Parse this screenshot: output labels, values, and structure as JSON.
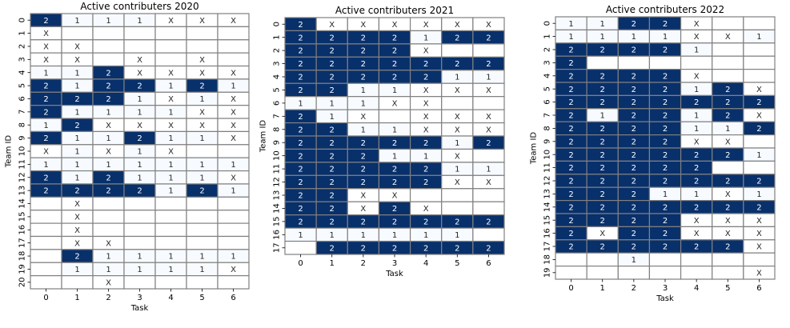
{
  "chart_data": [
    {
      "type": "heatmap",
      "title": "Active contributers 2020",
      "xlabel": "Task",
      "ylabel": "Team ID",
      "x_ticks": [
        "0",
        "1",
        "2",
        "3",
        "4",
        "5",
        "6"
      ],
      "y_ticks": [
        "0",
        "1",
        "2",
        "3",
        "4",
        "5",
        "6",
        "7",
        "8",
        "9",
        "10",
        "11",
        "12",
        "13",
        "14",
        "15",
        "16",
        "17",
        "18",
        "19",
        "20"
      ],
      "cells": [
        [
          "2",
          "1",
          "1",
          "1",
          "X",
          "X",
          "X"
        ],
        [
          "X",
          "",
          "",
          "",
          "",
          "",
          ""
        ],
        [
          "X",
          "X",
          "",
          "",
          "",
          "",
          ""
        ],
        [
          "X",
          "X",
          "",
          "X",
          "",
          "X",
          ""
        ],
        [
          "1",
          "1",
          "2",
          "X",
          "X",
          "X",
          "X"
        ],
        [
          "2",
          "1",
          "2",
          "2",
          "1",
          "2",
          "1"
        ],
        [
          "2",
          "2",
          "2",
          "1",
          "X",
          "1",
          "X"
        ],
        [
          "2",
          "1",
          "1",
          "1",
          "1",
          "X",
          "X"
        ],
        [
          "1",
          "2",
          "X",
          "X",
          "X",
          "X",
          "X"
        ],
        [
          "2",
          "1",
          "1",
          "2",
          "1",
          "1",
          "X"
        ],
        [
          "X",
          "1",
          "X",
          "1",
          "X",
          "",
          ""
        ],
        [
          "1",
          "1",
          "1",
          "1",
          "1",
          "1",
          "1"
        ],
        [
          "2",
          "1",
          "2",
          "1",
          "1",
          "1",
          "X"
        ],
        [
          "2",
          "2",
          "2",
          "2",
          "1",
          "2",
          "1"
        ],
        [
          "",
          "X",
          "",
          "",
          "",
          "",
          ""
        ],
        [
          "",
          "X",
          "",
          "",
          "",
          "",
          ""
        ],
        [
          "",
          "X",
          "",
          "",
          "",
          "",
          ""
        ],
        [
          "",
          "X",
          "X",
          "",
          "",
          "",
          ""
        ],
        [
          "",
          "2",
          "1",
          "1",
          "1",
          "1",
          "1"
        ],
        [
          "",
          "1",
          "1",
          "1",
          "1",
          "1",
          "X"
        ],
        [
          "",
          "",
          "X",
          "",
          "",
          "",
          ""
        ]
      ]
    },
    {
      "type": "heatmap",
      "title": "Active contributers 2021",
      "xlabel": "Task",
      "ylabel": "Team ID",
      "x_ticks": [
        "0",
        "1",
        "2",
        "3",
        "4",
        "5",
        "6"
      ],
      "y_ticks": [
        "0",
        "1",
        "2",
        "3",
        "4",
        "5",
        "6",
        "7",
        "8",
        "9",
        "10",
        "11",
        "12",
        "13",
        "14",
        "15",
        "16",
        "17"
      ],
      "cells": [
        [
          "2",
          "X",
          "X",
          "X",
          "X",
          "X",
          "X"
        ],
        [
          "2",
          "2",
          "2",
          "2",
          "1",
          "2",
          "2"
        ],
        [
          "2",
          "2",
          "2",
          "2",
          "X",
          "",
          ""
        ],
        [
          "2",
          "2",
          "2",
          "2",
          "2",
          "2",
          "2"
        ],
        [
          "2",
          "2",
          "2",
          "2",
          "2",
          "1",
          "1"
        ],
        [
          "2",
          "2",
          "1",
          "1",
          "X",
          "X",
          "X"
        ],
        [
          "1",
          "1",
          "1",
          "X",
          "X",
          "",
          ""
        ],
        [
          "2",
          "1",
          "X",
          "",
          "X",
          "X",
          "X"
        ],
        [
          "2",
          "2",
          "1",
          "1",
          "X",
          "X",
          "X"
        ],
        [
          "2",
          "2",
          "2",
          "2",
          "2",
          "1",
          "2"
        ],
        [
          "2",
          "2",
          "2",
          "1",
          "1",
          "X",
          ""
        ],
        [
          "2",
          "2",
          "2",
          "2",
          "2",
          "1",
          "1"
        ],
        [
          "2",
          "2",
          "2",
          "2",
          "2",
          "X",
          "X"
        ],
        [
          "2",
          "2",
          "X",
          "X",
          "",
          "",
          ""
        ],
        [
          "2",
          "2",
          "X",
          "2",
          "X",
          "",
          ""
        ],
        [
          "2",
          "2",
          "2",
          "2",
          "2",
          "2",
          "2"
        ],
        [
          "1",
          "1",
          "1",
          "1",
          "1",
          "1",
          ""
        ],
        [
          "",
          "2",
          "2",
          "2",
          "2",
          "2",
          "2"
        ]
      ]
    },
    {
      "type": "heatmap",
      "title": "Active contributers 2022",
      "xlabel": "Task",
      "ylabel": "Team ID",
      "x_ticks": [
        "0",
        "1",
        "2",
        "3",
        "4",
        "5",
        "6"
      ],
      "y_ticks": [
        "0",
        "1",
        "2",
        "3",
        "4",
        "5",
        "6",
        "7",
        "8",
        "9",
        "10",
        "11",
        "12",
        "13",
        "14",
        "15",
        "16",
        "17",
        "18",
        "19"
      ],
      "cells": [
        [
          "1",
          "1",
          "2",
          "2",
          "X",
          "",
          ""
        ],
        [
          "1",
          "1",
          "1",
          "1",
          "X",
          "X",
          "1"
        ],
        [
          "2",
          "2",
          "2",
          "2",
          "1",
          "",
          ""
        ],
        [
          "2",
          "",
          "",
          "",
          "",
          "",
          ""
        ],
        [
          "2",
          "2",
          "2",
          "2",
          "X",
          "",
          ""
        ],
        [
          "2",
          "2",
          "2",
          "2",
          "1",
          "2",
          "X"
        ],
        [
          "2",
          "2",
          "2",
          "2",
          "2",
          "2",
          "2"
        ],
        [
          "2",
          "1",
          "2",
          "2",
          "1",
          "2",
          "X"
        ],
        [
          "2",
          "2",
          "2",
          "2",
          "1",
          "1",
          "2"
        ],
        [
          "2",
          "2",
          "2",
          "2",
          "X",
          "X",
          ""
        ],
        [
          "2",
          "2",
          "2",
          "2",
          "2",
          "2",
          "1"
        ],
        [
          "2",
          "2",
          "2",
          "2",
          "2",
          "",
          ""
        ],
        [
          "2",
          "2",
          "2",
          "2",
          "2",
          "2",
          "2"
        ],
        [
          "2",
          "2",
          "2",
          "1",
          "1",
          "X",
          "1"
        ],
        [
          "2",
          "2",
          "2",
          "2",
          "2",
          "2",
          "2"
        ],
        [
          "2",
          "2",
          "2",
          "2",
          "X",
          "X",
          "X"
        ],
        [
          "2",
          "X",
          "2",
          "2",
          "X",
          "X",
          "X"
        ],
        [
          "2",
          "2",
          "2",
          "2",
          "2",
          "2",
          "X"
        ],
        [
          "",
          "",
          "1",
          "",
          "",
          "",
          ""
        ],
        [
          "",
          "",
          "",
          "",
          "",
          "",
          "X"
        ]
      ]
    }
  ],
  "colors": {
    "value_2": "#08306b",
    "value_1": "#f7fbff",
    "value_x": "#ffffff",
    "empty": "#ffffff",
    "grid": "#808080",
    "text_dark": "#262626",
    "text_light": "#ffffff"
  }
}
